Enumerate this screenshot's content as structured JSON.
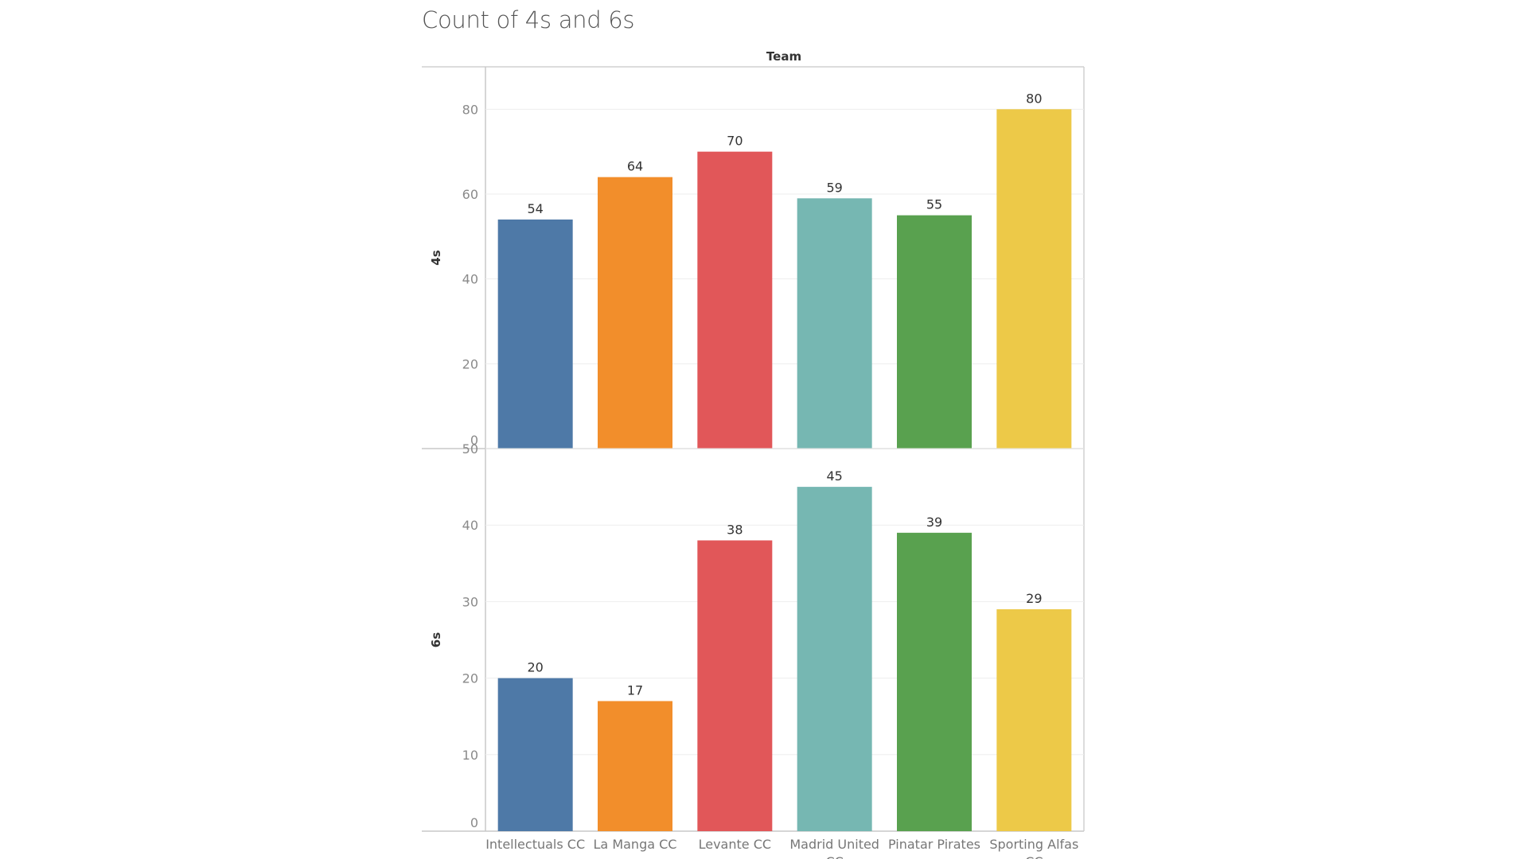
{
  "chart_data": {
    "type": "bar",
    "title": "Count of 4s and 6s",
    "column_header": "Team",
    "categories": [
      [
        "Intellectuals CC"
      ],
      [
        "La Manga CC"
      ],
      [
        "Levante CC"
      ],
      [
        "Madrid United",
        "CC"
      ],
      [
        "Pinatar Pirates"
      ],
      [
        "Sporting Alfas",
        "CC"
      ]
    ],
    "colors": [
      "#4e79a7",
      "#f28e2b",
      "#e15759",
      "#76b7b2",
      "#59a14f",
      "#edc948"
    ],
    "panels": [
      {
        "ylabel": "4s",
        "ylim": [
          0,
          90
        ],
        "ticks": [
          0,
          20,
          40,
          60,
          80
        ],
        "values": [
          54,
          64,
          70,
          59,
          55,
          80
        ]
      },
      {
        "ylabel": "6s",
        "ylim": [
          0,
          50
        ],
        "ticks": [
          0,
          10,
          20,
          30,
          40,
          50
        ],
        "values": [
          20,
          17,
          38,
          45,
          39,
          29
        ]
      }
    ],
    "grid": true,
    "legend": "none"
  }
}
